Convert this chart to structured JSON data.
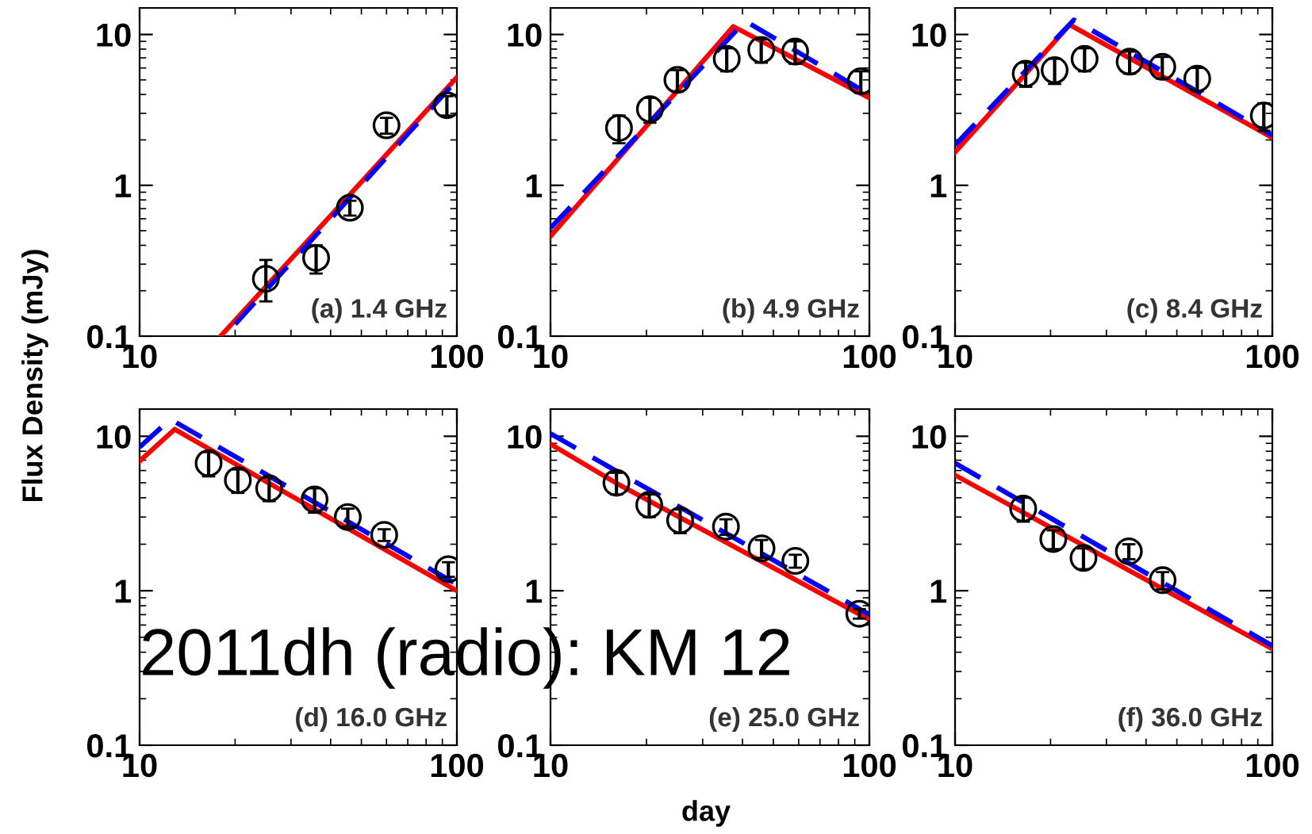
{
  "chart_data": [
    {
      "type": "line",
      "ylabel": "Flux Density (mJy)",
      "log": "xy",
      "xlim": [
        10,
        100
      ],
      "ylim": [
        0.1,
        15
      ],
      "xticks": [
        10,
        100
      ],
      "yticks": [
        0.1,
        1,
        10
      ],
      "grid": false,
      "legend": false,
      "annotations": [
        "(a) 1.4 GHz"
      ],
      "series": [
        {
          "type": "line",
          "color": "#ff0000",
          "line_style": "solid",
          "marker": "none",
          "x": [
            18,
            100
          ],
          "values": [
            0.1,
            5.2
          ]
        },
        {
          "type": "line",
          "color": "#0000ff",
          "line_style": "dashed",
          "marker": "none",
          "x": [
            20,
            100
          ],
          "values": [
            0.12,
            5.0
          ]
        },
        {
          "type": "scatter",
          "color": "#000000",
          "marker": "circle",
          "x": [
            25,
            36,
            46,
            60,
            93
          ],
          "values": [
            0.24,
            0.33,
            0.71,
            2.5,
            3.4
          ],
          "errors": [
            [
              0.17,
              0.32
            ],
            [
              0.26,
              0.4
            ],
            0.08,
            0.3,
            0.5
          ]
        }
      ]
    },
    {
      "type": "line",
      "log": "xy",
      "xlim": [
        10,
        100
      ],
      "ylim": [
        0.1,
        15
      ],
      "xticks": [
        10,
        100
      ],
      "yticks": [
        0.1,
        1,
        10
      ],
      "grid": false,
      "legend": false,
      "annotations": [
        "(b) 4.9 GHz"
      ],
      "series": [
        {
          "type": "line",
          "color": "#ff0000",
          "line_style": "solid",
          "marker": "none",
          "x": [
            10,
            37.4,
            100
          ],
          "values": [
            0.46,
            11.3,
            3.8
          ]
        },
        {
          "type": "line",
          "color": "#0000ff",
          "line_style": "dashed",
          "marker": "none",
          "x": [
            10,
            40.8,
            100
          ],
          "values": [
            0.52,
            12.3,
            4.0
          ]
        },
        {
          "type": "scatter",
          "color": "#000000",
          "marker": "circle",
          "x": [
            16.4,
            20.5,
            25,
            35.7,
            45.8,
            58.5,
            94
          ],
          "values": [
            2.4,
            3.2,
            5.0,
            6.9,
            7.9,
            7.7,
            4.9
          ],
          "errors": [
            0.5,
            0.6,
            0.8,
            1.2,
            1.4,
            1.3,
            0.8
          ]
        }
      ]
    },
    {
      "type": "line",
      "log": "xy",
      "xlim": [
        10,
        100
      ],
      "ylim": [
        0.1,
        15
      ],
      "xticks": [
        10,
        100
      ],
      "yticks": [
        0.1,
        1,
        10
      ],
      "grid": false,
      "legend": false,
      "annotations": [
        "(c) 8.4 GHz"
      ],
      "series": [
        {
          "type": "line",
          "color": "#ff0000",
          "line_style": "solid",
          "marker": "none",
          "x": [
            10,
            23,
            100
          ],
          "values": [
            1.66,
            11.6,
            2.07
          ]
        },
        {
          "type": "line",
          "color": "#0000ff",
          "line_style": "dashed",
          "marker": "none",
          "x": [
            10,
            23.7,
            100
          ],
          "values": [
            1.85,
            12.5,
            2.15
          ]
        },
        {
          "type": "scatter",
          "color": "#000000",
          "marker": "circle",
          "x": [
            16.7,
            20.6,
            25.6,
            35.5,
            45,
            58,
            94
          ],
          "values": [
            5.5,
            5.8,
            6.9,
            6.6,
            6.1,
            5.1,
            2.9
          ],
          "errors": [
            1.0,
            1.1,
            1.2,
            1.1,
            1.0,
            0.9,
            0.6
          ]
        }
      ]
    },
    {
      "type": "line",
      "log": "xy",
      "xlim": [
        10,
        100
      ],
      "ylim": [
        0.1,
        15
      ],
      "xticks": [
        10,
        100
      ],
      "yticks": [
        0.1,
        1,
        10
      ],
      "grid": false,
      "legend": false,
      "annotations": [
        "(d) 16.0 GHz",
        "2011dh (radio): KM 12"
      ],
      "series": [
        {
          "type": "line",
          "color": "#ff0000",
          "line_style": "solid",
          "marker": "none",
          "x": [
            10,
            12.9,
            100
          ],
          "values": [
            6.9,
            11.1,
            1.0
          ]
        },
        {
          "type": "line",
          "color": "#0000ff",
          "line_style": "dashed",
          "marker": "none",
          "x": [
            10,
            12.5,
            100
          ],
          "values": [
            8.5,
            12.9,
            1.1
          ]
        },
        {
          "type": "scatter",
          "color": "#000000",
          "marker": "circle",
          "x": [
            16.5,
            20.4,
            25.6,
            35.6,
            45.3,
            59,
            94
          ],
          "values": [
            6.7,
            5.2,
            4.6,
            3.9,
            3.0,
            2.3,
            1.38
          ],
          "errors": [
            1.2,
            0.9,
            0.8,
            0.7,
            0.4,
            0.2,
            0.15
          ]
        }
      ]
    },
    {
      "type": "line",
      "xlabel": "day",
      "log": "xy",
      "xlim": [
        10,
        100
      ],
      "ylim": [
        0.1,
        15
      ],
      "xticks": [
        10,
        100
      ],
      "yticks": [
        0.1,
        1,
        10
      ],
      "grid": false,
      "legend": false,
      "annotations": [
        "(e) 25.0 GHz"
      ],
      "series": [
        {
          "type": "line",
          "color": "#ff0000",
          "line_style": "solid",
          "marker": "none",
          "x": [
            10,
            16,
            100
          ],
          "values": [
            8.9,
            5.0,
            0.65
          ]
        },
        {
          "type": "line",
          "color": "#0000ff",
          "line_style": "dashed",
          "marker": "none",
          "x": [
            10,
            100
          ],
          "values": [
            10.4,
            0.7
          ]
        },
        {
          "type": "scatter",
          "color": "#000000",
          "marker": "circle",
          "x": [
            16.1,
            20.4,
            25.5,
            35.5,
            45.9,
            58.6,
            93
          ],
          "values": [
            5.0,
            3.6,
            2.86,
            2.6,
            1.88,
            1.56,
            0.71
          ],
          "errors": [
            0.8,
            0.6,
            0.5,
            0.3,
            0.25,
            0.15,
            0.05
          ]
        }
      ]
    },
    {
      "type": "line",
      "log": "xy",
      "xlim": [
        10,
        100
      ],
      "ylim": [
        0.1,
        15
      ],
      "xticks": [
        10,
        100
      ],
      "yticks": [
        0.1,
        1,
        10
      ],
      "grid": false,
      "legend": false,
      "annotations": [
        "(f) 36.0 GHz"
      ],
      "series": [
        {
          "type": "line",
          "color": "#ff0000",
          "line_style": "solid",
          "marker": "none",
          "x": [
            10,
            100
          ],
          "values": [
            5.6,
            0.42
          ]
        },
        {
          "type": "line",
          "color": "#0000ff",
          "line_style": "dashed",
          "marker": "none",
          "x": [
            10,
            100
          ],
          "values": [
            6.7,
            0.44
          ]
        },
        {
          "type": "scatter",
          "color": "#000000",
          "marker": "circle",
          "x": [
            16.4,
            20.4,
            25.4,
            35.3,
            45.1
          ],
          "values": [
            3.4,
            2.16,
            1.63,
            1.8,
            1.17
          ],
          "errors": [
            0.6,
            0.3,
            0.25,
            0.2,
            0.15
          ]
        }
      ]
    }
  ]
}
